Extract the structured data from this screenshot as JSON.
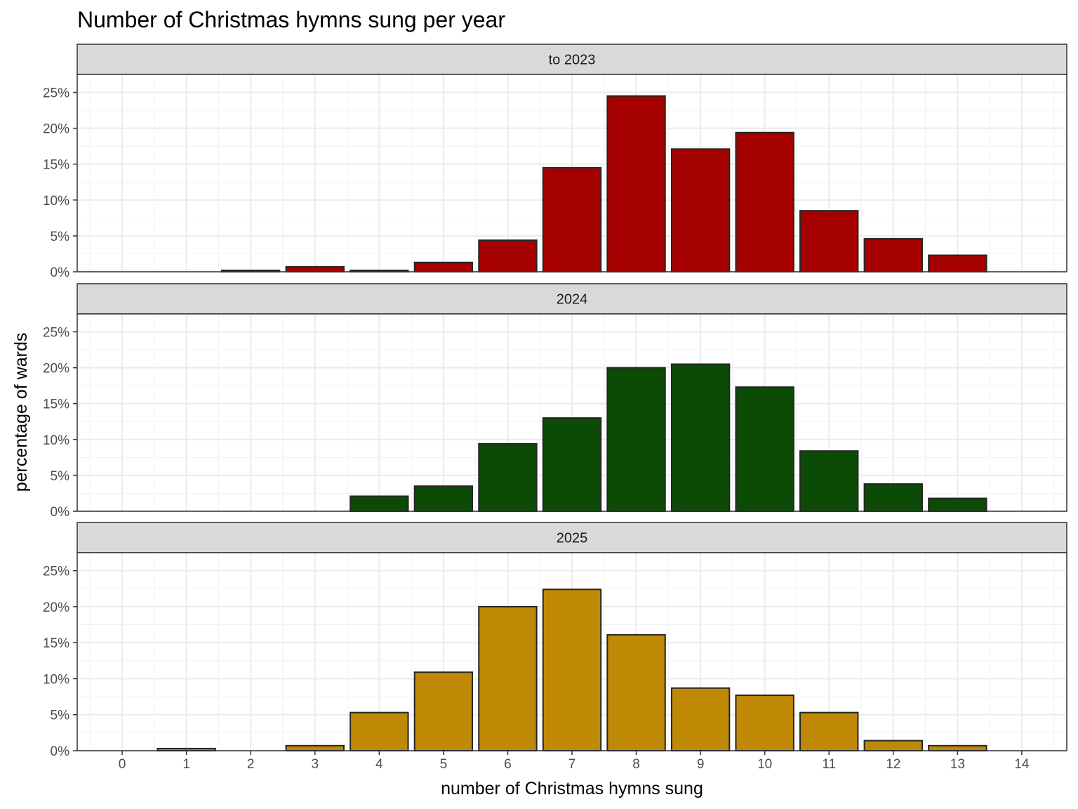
{
  "chart_data": {
    "type": "bar",
    "title": "Number of Christmas hymns sung per year",
    "xlabel": "number of Christmas hymns sung",
    "ylabel": "percentage of wards",
    "x_ticks": [
      0,
      1,
      2,
      3,
      4,
      5,
      6,
      7,
      8,
      9,
      10,
      11,
      12,
      13,
      14
    ],
    "xlim": [
      -0.7,
      14.7
    ],
    "ylim": [
      0,
      27.5
    ],
    "y_ticks": [
      0,
      5,
      10,
      15,
      20,
      25
    ],
    "y_tick_labels": [
      "0%",
      "5%",
      "10%",
      "15%",
      "20%",
      "25%"
    ],
    "grid": true,
    "panels": [
      {
        "label": "to 2023",
        "color": "#a50000",
        "x": [
          2,
          3,
          4,
          5,
          6,
          7,
          8,
          9,
          10,
          11,
          12,
          13
        ],
        "values": [
          0.2,
          0.7,
          0.2,
          1.3,
          4.4,
          14.5,
          24.5,
          17.1,
          19.4,
          8.5,
          4.6,
          2.3
        ]
      },
      {
        "label": "2024",
        "color": "#0c4b05",
        "x": [
          4,
          5,
          6,
          7,
          8,
          9,
          10,
          11,
          12,
          13
        ],
        "values": [
          2.1,
          3.5,
          9.4,
          13.0,
          20.0,
          20.5,
          17.3,
          8.4,
          3.8,
          1.8
        ]
      },
      {
        "label": "2025",
        "color": "#bf8906",
        "x": [
          1,
          3,
          4,
          5,
          6,
          7,
          8,
          9,
          10,
          11,
          12,
          13
        ],
        "values": [
          0.3,
          0.7,
          5.3,
          10.9,
          20.0,
          22.4,
          16.1,
          8.7,
          7.7,
          5.3,
          1.4,
          0.7
        ]
      }
    ]
  }
}
